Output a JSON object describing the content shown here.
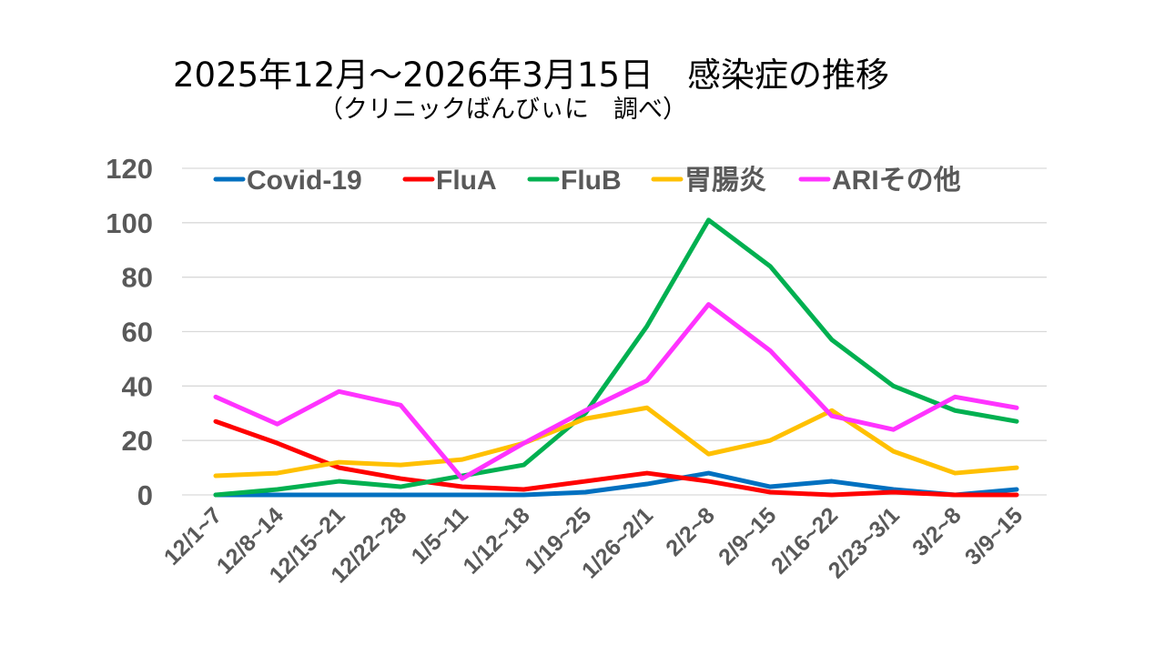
{
  "chart_data": {
    "type": "line",
    "title": "2025年12月～2026年3月15日　感染症の推移",
    "subtitle": "（クリニックばんびぃに　調べ）",
    "xlabel": "",
    "ylabel": "",
    "ylim": [
      0,
      120
    ],
    "yticks": [
      0,
      20,
      40,
      60,
      80,
      100,
      120
    ],
    "grid": true,
    "legend_position": "top",
    "categories": [
      "12/1~7",
      "12/8~14",
      "12/15~21",
      "12/22~28",
      "1/5~11",
      "1/12~18",
      "1/19~25",
      "1/26~2/1",
      "2/2~8",
      "2/9~15",
      "2/16~22",
      "2/23~3/1",
      "3/2~8",
      "3/9~15"
    ],
    "series": [
      {
        "name": "Covid-19",
        "color": "#0070C0",
        "values": [
          0,
          0,
          0,
          0,
          0,
          0,
          1,
          4,
          8,
          3,
          5,
          2,
          0,
          2
        ]
      },
      {
        "name": "FluA",
        "color": "#FF0000",
        "values": [
          27,
          19,
          10,
          6,
          3,
          2,
          5,
          8,
          5,
          1,
          0,
          1,
          0,
          0
        ]
      },
      {
        "name": "FluB",
        "color": "#00B050",
        "values": [
          0,
          2,
          5,
          3,
          7,
          11,
          30,
          62,
          101,
          84,
          57,
          40,
          31,
          27
        ]
      },
      {
        "name": "胃腸炎",
        "color": "#FFC000",
        "values": [
          7,
          8,
          12,
          11,
          13,
          19,
          28,
          32,
          15,
          20,
          31,
          16,
          8,
          10
        ]
      },
      {
        "name": "ARIその他",
        "color": "#FF33FF",
        "values": [
          36,
          26,
          38,
          33,
          6,
          19,
          31,
          42,
          70,
          53,
          29,
          24,
          36,
          32
        ]
      }
    ]
  }
}
